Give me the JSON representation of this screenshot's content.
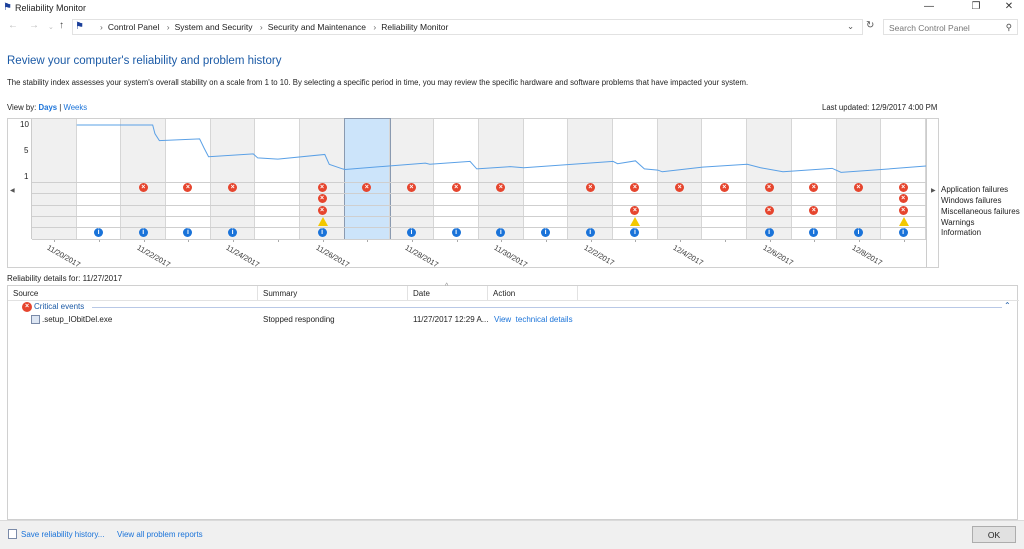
{
  "window": {
    "title": "Reliability Monitor",
    "minimize": "—",
    "maximize": "❐",
    "close": "✕"
  },
  "address": {
    "crumbs": [
      "Control Panel",
      "System and Security",
      "Security and Maintenance",
      "Reliability Monitor"
    ],
    "search_placeholder": "Search Control Panel"
  },
  "page": {
    "heading": "Review your computer's reliability and problem history",
    "description": "The stability index assesses your system's overall stability on a scale from 1 to 10. By selecting a specific period in time, you may review the specific hardware and software problems that have impacted your system.",
    "view_by_label": "View by:",
    "view_days": "Days",
    "view_weeks": "Weeks",
    "last_updated": "Last updated: 12/9/2017 4:00 PM"
  },
  "monitor": {
    "y_ticks": [
      "10",
      "5",
      "1"
    ],
    "rows": [
      "Application failures",
      "Windows failures",
      "Miscellaneous failures",
      "Warnings",
      "Information"
    ],
    "selected_day": "11/27/2017",
    "colors": {
      "error": "#e6452e",
      "info": "#1a73d9",
      "warning": "#f3c800",
      "line": "#5aa0e6",
      "selected": "#cce4fa"
    },
    "stability": [
      [
        1,
        10
      ],
      [
        2.7,
        10
      ],
      [
        2.75,
        8.5
      ],
      [
        2.85,
        7.3
      ],
      [
        3.75,
        7.6
      ],
      [
        3.85,
        6
      ],
      [
        3.95,
        4.5
      ],
      [
        4.95,
        5
      ],
      [
        5.05,
        4.3
      ],
      [
        5.5,
        4.1
      ],
      [
        6.55,
        4.9
      ],
      [
        6.65,
        3.2
      ],
      [
        6.95,
        2.4
      ],
      [
        7,
        2.3
      ],
      [
        8.8,
        3.4
      ],
      [
        8.9,
        3.2
      ],
      [
        9.8,
        3.7
      ],
      [
        9.95,
        2.4
      ],
      [
        10.7,
        2.8
      ],
      [
        11,
        2.6
      ],
      [
        13,
        3.7
      ],
      [
        13.1,
        3.3
      ],
      [
        13.5,
        3.8
      ],
      [
        13.7,
        2.4
      ],
      [
        14,
        2.2
      ],
      [
        14.1,
        1.9
      ],
      [
        15,
        2.7
      ],
      [
        16,
        3.2
      ],
      [
        16.3,
        2.6
      ],
      [
        16.8,
        1.9
      ],
      [
        17.9,
        2.5
      ],
      [
        18.1,
        1.8
      ],
      [
        19,
        2.3
      ],
      [
        20,
        2.9
      ]
    ],
    "days": [
      {
        "date": "11/20/2017",
        "label": "11/20/2017",
        "events": []
      },
      {
        "date": "11/21/2017",
        "label": "",
        "events": [
          "info"
        ]
      },
      {
        "date": "11/22/2017",
        "label": "11/22/2017",
        "events": [
          "app",
          "info"
        ]
      },
      {
        "date": "11/23/2017",
        "label": "",
        "events": [
          "app",
          "info"
        ]
      },
      {
        "date": "11/24/2017",
        "label": "11/24/2017",
        "events": [
          "app",
          "info"
        ]
      },
      {
        "date": "11/25/2017",
        "label": "",
        "events": []
      },
      {
        "date": "11/26/2017",
        "label": "11/26/2017",
        "events": [
          "app",
          "win",
          "misc",
          "warn",
          "info"
        ]
      },
      {
        "date": "11/27/2017",
        "label": "",
        "events": [
          "app"
        ]
      },
      {
        "date": "11/28/2017",
        "label": "11/28/2017",
        "events": [
          "app",
          "info"
        ]
      },
      {
        "date": "11/29/2017",
        "label": "",
        "events": [
          "app",
          "info"
        ]
      },
      {
        "date": "11/30/2017",
        "label": "11/30/2017",
        "events": [
          "app",
          "info"
        ]
      },
      {
        "date": "12/1/2017",
        "label": "",
        "events": [
          "info"
        ]
      },
      {
        "date": "12/2/2017",
        "label": "12/2/2017",
        "events": [
          "app",
          "info"
        ]
      },
      {
        "date": "12/3/2017",
        "label": "",
        "events": [
          "app",
          "misc",
          "warn",
          "info"
        ]
      },
      {
        "date": "12/4/2017",
        "label": "12/4/2017",
        "events": [
          "app"
        ]
      },
      {
        "date": "12/5/2017",
        "label": "",
        "events": [
          "app"
        ]
      },
      {
        "date": "12/6/2017",
        "label": "12/6/2017",
        "events": [
          "app",
          "misc",
          "info"
        ]
      },
      {
        "date": "12/7/2017",
        "label": "",
        "events": [
          "app",
          "misc",
          "info"
        ]
      },
      {
        "date": "12/8/2017",
        "label": "12/8/2017",
        "events": [
          "app",
          "info"
        ]
      },
      {
        "date": "12/9/2017",
        "label": "",
        "events": [
          "app",
          "win",
          "misc",
          "warn",
          "info"
        ]
      }
    ]
  },
  "details": {
    "label": "Reliability details for: 11/27/2017",
    "columns": [
      "Source",
      "Summary",
      "Date",
      "Action"
    ],
    "group": "Critical events",
    "rows": [
      {
        "source": ".setup_IObitDel.exe",
        "summary": "Stopped responding",
        "date": "11/27/2017 12:29 A...",
        "action": "View  technical details"
      }
    ]
  },
  "footer": {
    "save": "Save reliability history...",
    "view_all": "View all problem reports",
    "ok": "OK"
  }
}
